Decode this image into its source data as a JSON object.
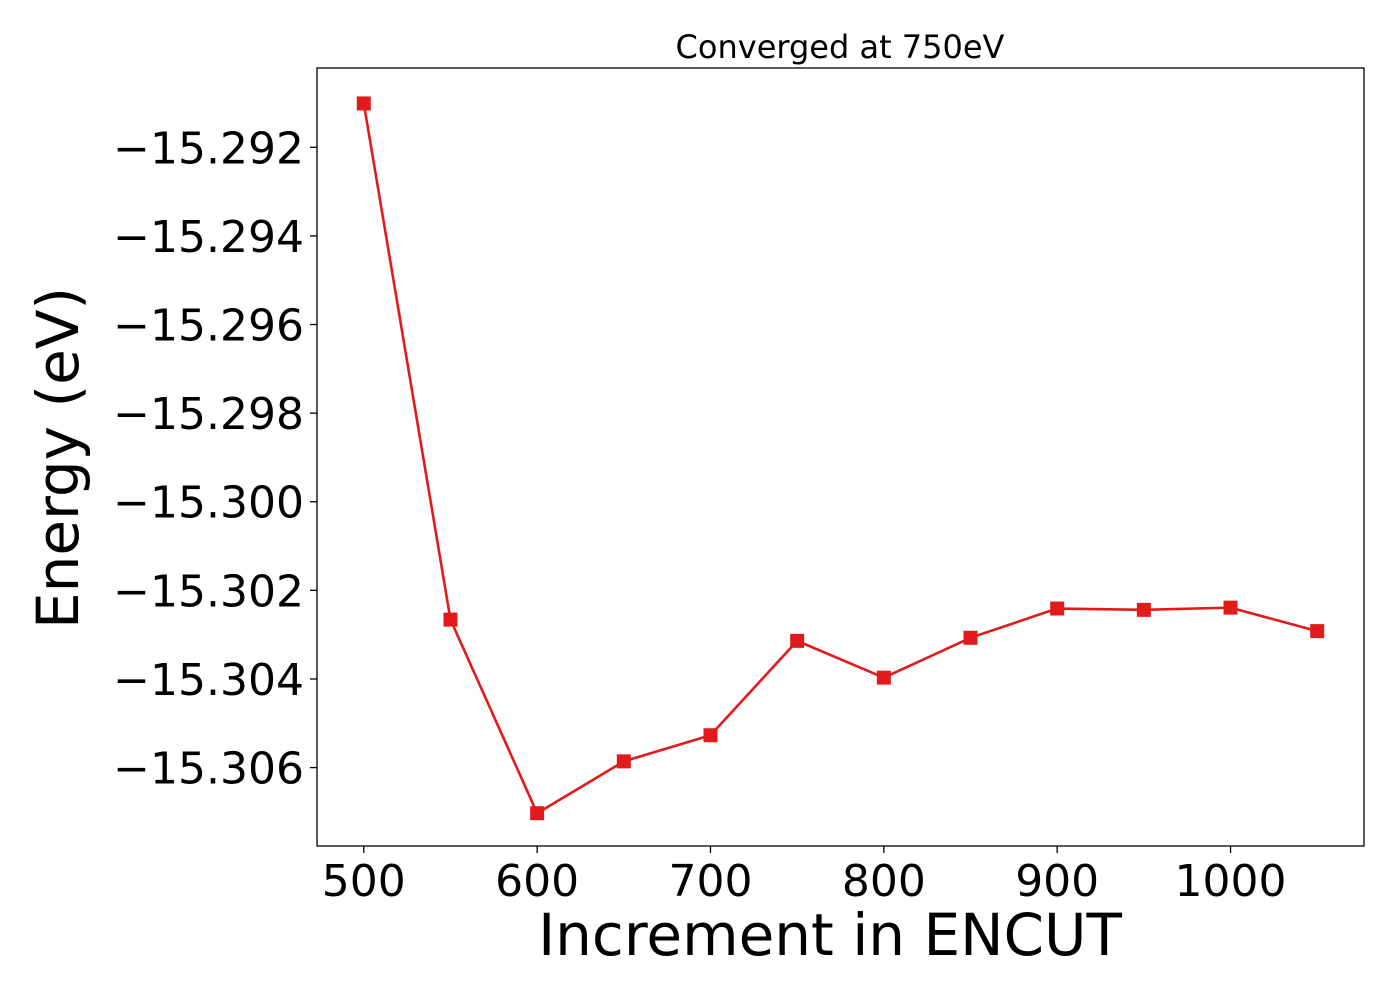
{
  "chart_data": {
    "type": "line",
    "title": "Converged at 750eV",
    "xlabel": "Increment in ENCUT",
    "ylabel": "Energy (eV)",
    "x": [
      500,
      550,
      600,
      650,
      700,
      750,
      800,
      850,
      900,
      950,
      1000,
      1050
    ],
    "series": [
      {
        "values": [
          -15.29101,
          -15.30266,
          -15.30703,
          -15.30586,
          -15.30527,
          -15.30314,
          -15.30397,
          -15.30307,
          -15.30241,
          -15.30244,
          -15.30239,
          -15.30292
        ],
        "color": "#e31a1c",
        "marker": "square"
      }
    ],
    "xlim": [
      473,
      1077
    ],
    "ylim": [
      -15.30777,
      -15.29021
    ],
    "xticks": [
      500,
      600,
      700,
      800,
      900,
      1000
    ],
    "xtick_labels": [
      "500",
      "600",
      "700",
      "800",
      "900",
      "1000"
    ],
    "yticks": [
      -15.306,
      -15.304,
      -15.302,
      -15.3,
      -15.298,
      -15.296,
      -15.294,
      -15.292
    ],
    "ytick_labels": [
      "−15.306",
      "−15.304",
      "−15.302",
      "−15.300",
      "−15.298",
      "−15.296",
      "−15.294",
      "−15.292"
    ],
    "grid": false,
    "legend": "none"
  }
}
